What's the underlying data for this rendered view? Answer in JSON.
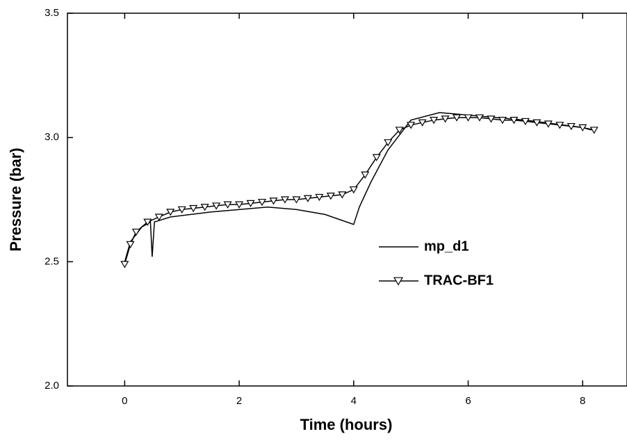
{
  "chart_data": {
    "type": "line",
    "xlabel": "Time (hours)",
    "ylabel": "Pressure (bar)",
    "xlim": [
      -1,
      8.75
    ],
    "ylim": [
      2.0,
      3.5
    ],
    "xticks": [
      0,
      2,
      4,
      6,
      8
    ],
    "yticks": [
      {
        "value": 2.0,
        "label": "2.0"
      },
      2.5,
      {
        "value": 3.0,
        "label": "3.0"
      },
      3.5
    ],
    "legend": "right",
    "series": [
      {
        "name": "mp_d1",
        "color": "#000000",
        "marker": "none",
        "x": [
          0,
          0.1,
          0.3,
          0.45,
          0.48,
          0.52,
          0.8,
          1.5,
          2.5,
          3.0,
          3.5,
          4.0,
          4.1,
          4.3,
          4.6,
          5.0,
          5.5,
          6.0,
          7.0,
          8.0,
          8.15
        ],
        "values": [
          2.5,
          2.58,
          2.64,
          2.66,
          2.52,
          2.66,
          2.68,
          2.7,
          2.72,
          2.71,
          2.69,
          2.65,
          2.72,
          2.82,
          2.95,
          3.07,
          3.1,
          3.09,
          3.07,
          3.04,
          3.03
        ]
      },
      {
        "name": "TRAC-BF1",
        "color": "#000000",
        "marker": "triangle-down",
        "x": [
          0,
          0.1,
          0.2,
          0.4,
          0.6,
          0.8,
          1.0,
          1.2,
          1.4,
          1.6,
          1.8,
          2.0,
          2.2,
          2.4,
          2.6,
          2.8,
          3.0,
          3.2,
          3.4,
          3.6,
          3.8,
          4.0,
          4.2,
          4.4,
          4.6,
          4.8,
          5.0,
          5.2,
          5.4,
          5.6,
          5.8,
          6.0,
          6.2,
          6.4,
          6.6,
          6.8,
          7.0,
          7.2,
          7.4,
          7.6,
          7.8,
          8.0,
          8.2
        ],
        "values": [
          2.49,
          2.57,
          2.62,
          2.66,
          2.68,
          2.7,
          2.71,
          2.715,
          2.72,
          2.725,
          2.73,
          2.73,
          2.735,
          2.74,
          2.745,
          2.75,
          2.75,
          2.755,
          2.76,
          2.765,
          2.77,
          2.79,
          2.85,
          2.92,
          2.98,
          3.03,
          3.05,
          3.06,
          3.07,
          3.075,
          3.08,
          3.08,
          3.08,
          3.075,
          3.07,
          3.07,
          3.065,
          3.06,
          3.055,
          3.05,
          3.045,
          3.04,
          3.03
        ]
      }
    ]
  }
}
